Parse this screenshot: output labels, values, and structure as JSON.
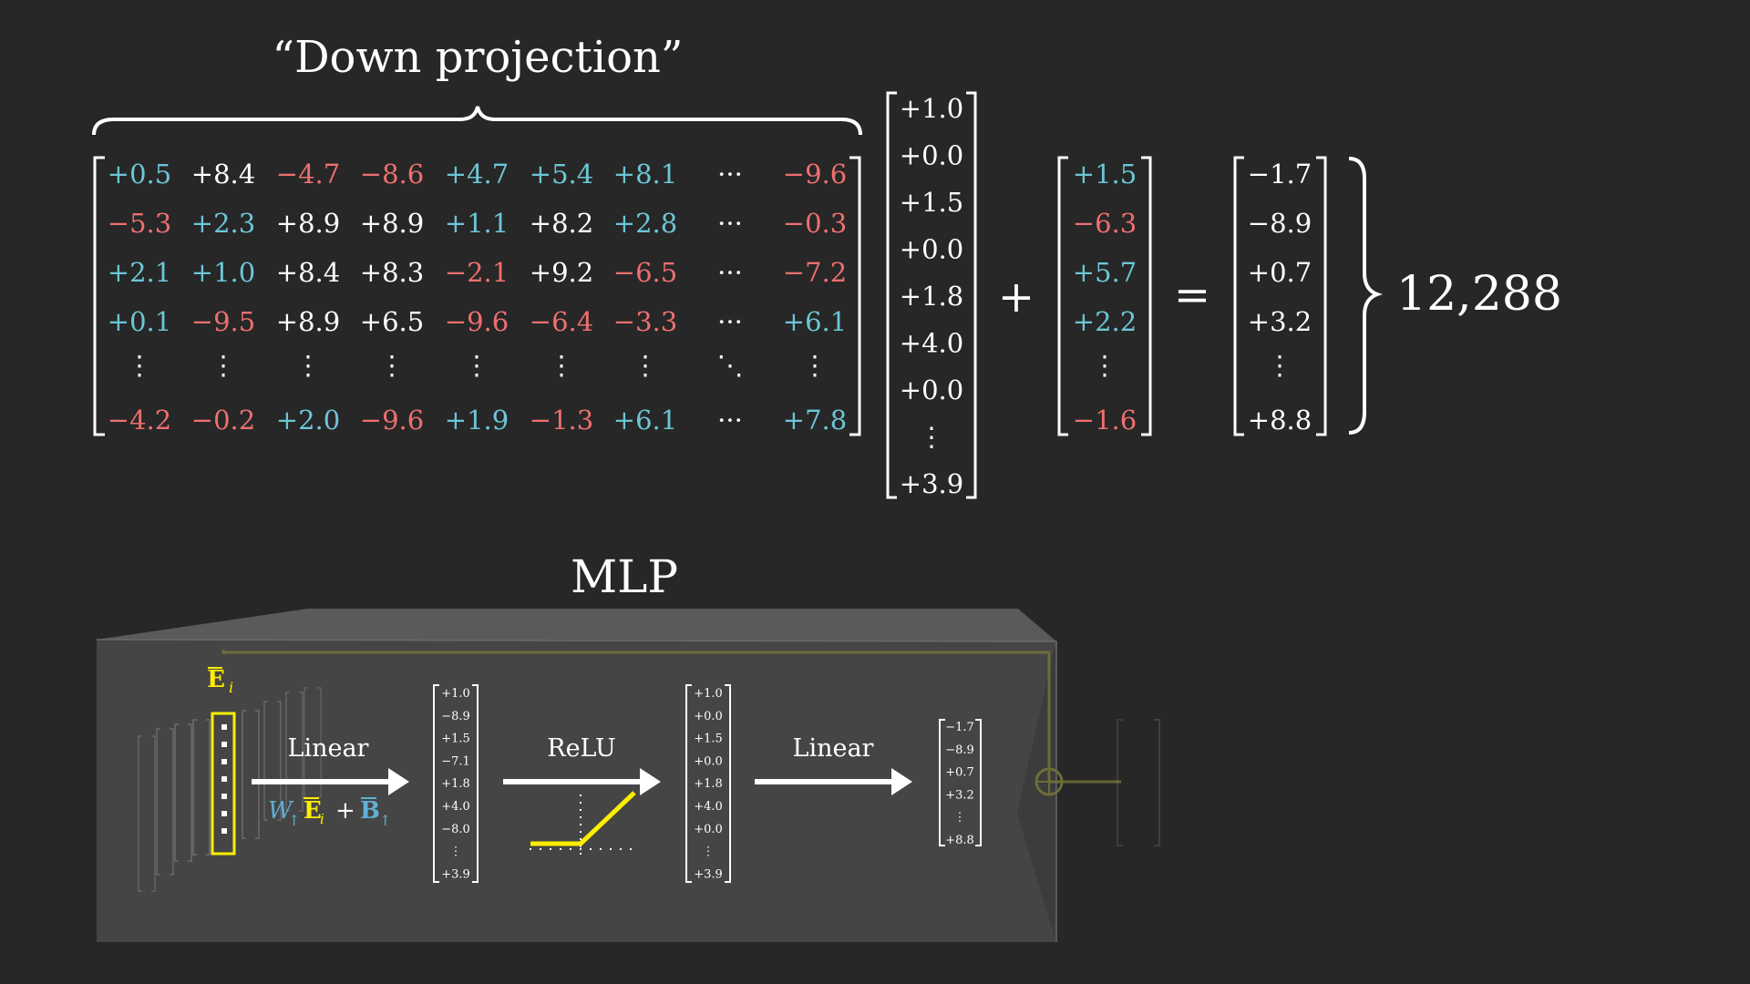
{
  "colors": {
    "background": "#272727",
    "positive": "#6cc6d6",
    "negative": "#ee6f6f",
    "neutral": "#ffffff",
    "highlight": "#ffee00",
    "bias": "#5fb0d6"
  },
  "top": {
    "title": "“Down projection”",
    "ellipsis_h": "···",
    "ellipsis_v": "⋮",
    "ellipsis_d": "⋱",
    "matrix_rows": [
      [
        "+0.5",
        "+8.4",
        "−4.7",
        "−8.6",
        "+4.7",
        "+5.4",
        "+8.1",
        "···",
        "−9.6"
      ],
      [
        "−5.3",
        "+2.3",
        "+8.9",
        "+8.9",
        "+1.1",
        "+8.2",
        "+2.8",
        "···",
        "−0.3"
      ],
      [
        "+2.1",
        "+1.0",
        "+8.4",
        "+8.3",
        "−2.1",
        "+9.2",
        "−6.5",
        "···",
        "−7.2"
      ],
      [
        "+0.1",
        "−9.5",
        "+8.9",
        "+6.5",
        "−9.6",
        "−6.4",
        "−3.3",
        "···",
        "+6.1"
      ],
      [
        "⋮",
        "⋮",
        "⋮",
        "⋮",
        "⋮",
        "⋮",
        "⋮",
        "⋱",
        "⋮"
      ],
      [
        "−4.2",
        "−0.2",
        "+2.0",
        "−9.6",
        "+1.9",
        "−1.3",
        "+6.1",
        "···",
        "+7.8"
      ]
    ],
    "matrix_colors": [
      [
        "positive",
        "neutral",
        "negative",
        "negative",
        "positive",
        "positive",
        "positive",
        "neutral",
        "negative"
      ],
      [
        "negative",
        "positive",
        "neutral",
        "neutral",
        "positive",
        "neutral",
        "positive",
        "neutral",
        "negative"
      ],
      [
        "positive",
        "positive",
        "neutral",
        "neutral",
        "negative",
        "neutral",
        "negative",
        "neutral",
        "negative"
      ],
      [
        "positive",
        "negative",
        "neutral",
        "neutral",
        "negative",
        "negative",
        "negative",
        "neutral",
        "positive"
      ],
      [
        "neutral",
        "neutral",
        "neutral",
        "neutral",
        "neutral",
        "neutral",
        "neutral",
        "neutral",
        "neutral"
      ],
      [
        "negative",
        "negative",
        "positive",
        "negative",
        "positive",
        "negative",
        "positive",
        "neutral",
        "positive"
      ]
    ],
    "input_vector": [
      "+1.0",
      "+0.0",
      "+1.5",
      "+0.0",
      "+1.8",
      "+4.0",
      "+0.0",
      "⋮",
      "+3.9"
    ],
    "plus": "+",
    "bias_vector": [
      "+1.5",
      "−6.3",
      "+5.7",
      "+2.2",
      "⋮",
      "−1.6"
    ],
    "bias_colors": [
      "positive",
      "negative",
      "positive",
      "positive",
      "neutral",
      "negative"
    ],
    "equals": "=",
    "result_vector": [
      "−1.7",
      "−8.9",
      "+0.7",
      "+3.2",
      "⋮",
      "+8.8"
    ],
    "dimension": "12,288"
  },
  "mlp": {
    "title": "MLP",
    "input_label": "E",
    "input_sub": "i",
    "linear1_label": "Linear",
    "formula_w": "W",
    "formula_plus": "+",
    "formula_b": "B",
    "arrow_sub": "↑",
    "relu_label": "ReLU",
    "linear2_label": "Linear",
    "hidden_vector": [
      "+1.0",
      "−8.9",
      "+1.5",
      "−7.1",
      "+1.8",
      "+4.0",
      "−8.0",
      "⋮",
      "+3.9"
    ],
    "relu_vector": [
      "+1.0",
      "+0.0",
      "+1.5",
      "+0.0",
      "+1.8",
      "+4.0",
      "+0.0",
      "⋮",
      "+3.9"
    ],
    "output_vector": [
      "−1.7",
      "−8.9",
      "+0.7",
      "+3.2",
      "⋮",
      "+8.8"
    ],
    "residual_symbol": "⊕"
  }
}
